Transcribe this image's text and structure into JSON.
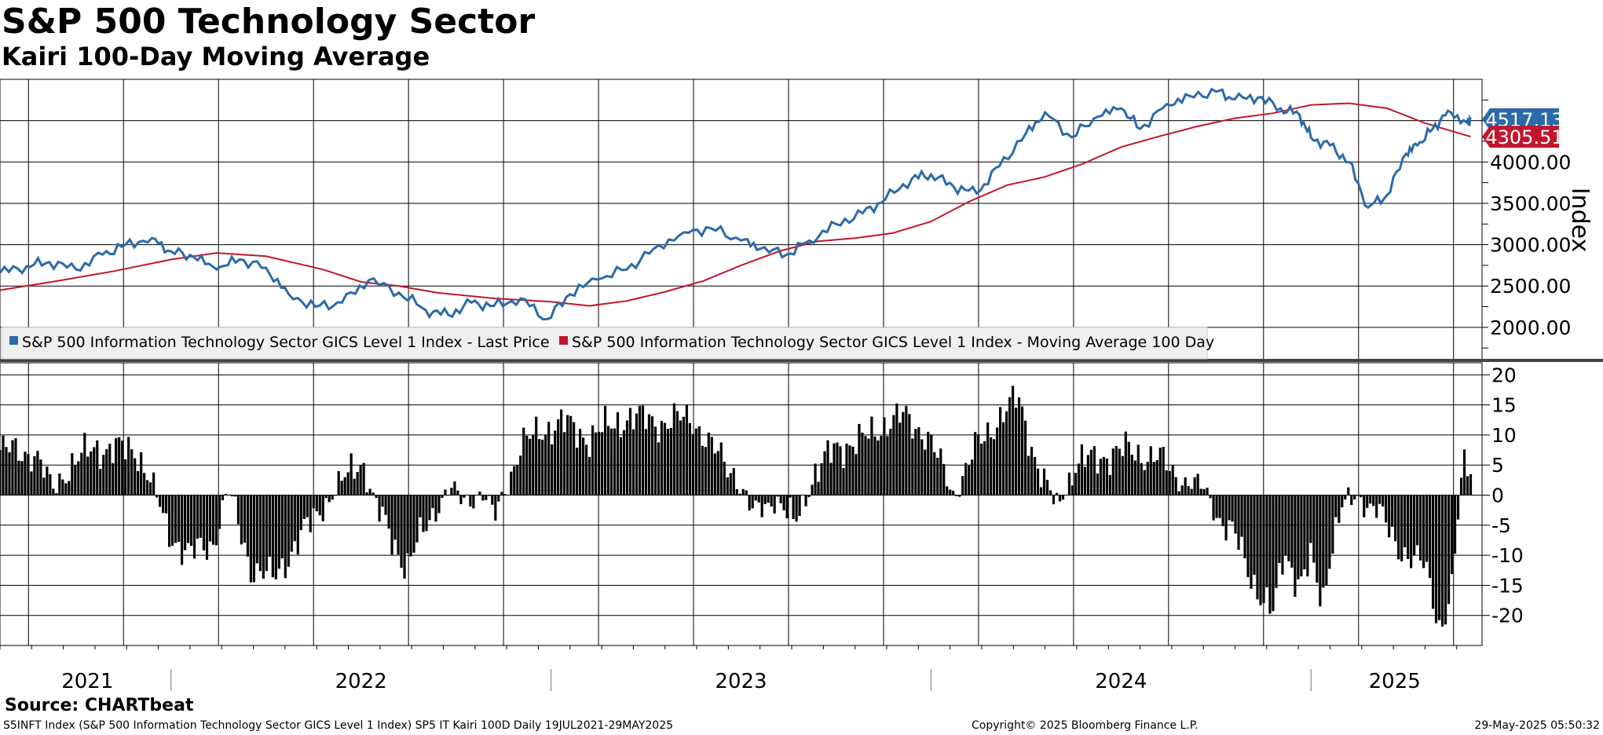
{
  "header": {
    "title": "S&P 500 Technology Sector",
    "subtitle": "Kairi 100-Day Moving Average"
  },
  "footer": {
    "source": "Source: CHARTbeat",
    "left": "S5INFT Index (S&P 500 Information Technology Sector GICS Level 1 Index) SP5 IT Kairi 100D  Daily 19JUL2021-29MAY2025",
    "center": "Copyright© 2025 Bloomberg Finance L.P.",
    "right": "29-May-2025 05:50:32"
  },
  "colors": {
    "price": "#2c6aa8",
    "ma": "#c0172d",
    "kairi": "#000000",
    "grid": "#000000"
  },
  "chart_data": [
    {
      "type": "line",
      "title": "S&P 500 Technology Sector",
      "ylabel": "Index",
      "ylim": [
        1600,
        5000
      ],
      "x_range": [
        2021.55,
        2025.45
      ],
      "yticks": [
        "2000.00",
        "2500.00",
        "3000.00",
        "3500.00",
        "4000.00"
      ],
      "xtick_labels": [
        "2021",
        "2022",
        "2023",
        "2024",
        "2025"
      ],
      "legend": [
        "S&P 500 Information Technology Sector GICS Level 1 Index  - Last Price",
        "S&P 500 Information Technology Sector GICS Level 1 Index  - Moving Average 100 Day"
      ],
      "last_values": {
        "price": "4517.13",
        "ma": "4305.51"
      },
      "series": [
        {
          "name": "Last Price",
          "x": [
            2021.55,
            2021.62,
            2021.68,
            2021.75,
            2021.82,
            2021.88,
            2021.95,
            2022.0,
            2022.06,
            2022.12,
            2022.18,
            2022.25,
            2022.31,
            2022.38,
            2022.45,
            2022.52,
            2022.6,
            2022.67,
            2022.73,
            2022.79,
            2022.85,
            2022.92,
            2022.99,
            2023.05,
            2023.12,
            2023.2,
            2023.27,
            2023.35,
            2023.42,
            2023.5,
            2023.55,
            2023.62,
            2023.68,
            2023.75,
            2023.82,
            2023.88,
            2023.95,
            2024.0,
            2024.06,
            2024.12,
            2024.18,
            2024.25,
            2024.3,
            2024.37,
            2024.44,
            2024.5,
            2024.55,
            2024.62,
            2024.68,
            2024.75,
            2024.8,
            2024.86,
            2024.92,
            2024.97,
            2025.0,
            2025.05,
            2025.1,
            2025.15,
            2025.2,
            2025.25,
            2025.28,
            2025.32,
            2025.36,
            2025.41,
            2025.42
          ],
          "values": [
            2660,
            2740,
            2790,
            2700,
            2880,
            3000,
            3080,
            2920,
            2850,
            2700,
            2820,
            2720,
            2400,
            2250,
            2300,
            2570,
            2420,
            2210,
            2150,
            2300,
            2260,
            2350,
            2100,
            2400,
            2580,
            2700,
            2950,
            3150,
            3200,
            3050,
            2950,
            2880,
            3050,
            3250,
            3380,
            3550,
            3800,
            3850,
            3700,
            3620,
            3950,
            4350,
            4600,
            4300,
            4550,
            4650,
            4400,
            4700,
            4800,
            4850,
            4760,
            4780,
            4650,
            4570,
            4290,
            4200,
            4000,
            3450,
            3600,
            4100,
            4200,
            4400,
            4620,
            4480,
            4517.13
          ]
        },
        {
          "name": "Moving Average 100 Day",
          "x": [
            2021.55,
            2021.7,
            2021.85,
            2022.0,
            2022.12,
            2022.25,
            2022.4,
            2022.5,
            2022.6,
            2022.7,
            2022.85,
            2023.0,
            2023.1,
            2023.2,
            2023.3,
            2023.4,
            2023.5,
            2023.6,
            2023.7,
            2023.8,
            2023.9,
            2024.0,
            2024.1,
            2024.2,
            2024.3,
            2024.4,
            2024.5,
            2024.6,
            2024.7,
            2024.8,
            2024.9,
            2025.0,
            2025.1,
            2025.2,
            2025.3,
            2025.42
          ],
          "values": [
            2450,
            2560,
            2680,
            2820,
            2900,
            2860,
            2700,
            2550,
            2500,
            2420,
            2350,
            2310,
            2260,
            2320,
            2430,
            2560,
            2750,
            2920,
            3040,
            3080,
            3140,
            3280,
            3520,
            3720,
            3820,
            3980,
            4180,
            4310,
            4430,
            4530,
            4590,
            4690,
            4710,
            4650,
            4470,
            4305.51
          ]
        }
      ]
    },
    {
      "type": "bar",
      "title": "SP5 IT Kairi 100D",
      "ylim": [
        -25,
        22
      ],
      "x_range": [
        2021.55,
        2025.45
      ],
      "yticks": [
        20,
        15,
        10,
        5,
        0,
        -5,
        -10,
        -15,
        -20
      ],
      "kairi_anchors": {
        "x": [
          2021.55,
          2021.64,
          2021.69,
          2021.72,
          2021.8,
          2021.87,
          2021.91,
          2021.95,
          2021.99,
          2022.05,
          2022.11,
          2022.15,
          2022.21,
          2022.27,
          2022.33,
          2022.41,
          2022.5,
          2022.54,
          2022.62,
          2022.68,
          2022.73,
          2022.77,
          2022.82,
          2022.85,
          2022.92,
          2022.98,
          2023.03,
          2023.1,
          2023.2,
          2023.3,
          2023.37,
          2023.42,
          2023.48,
          2023.53,
          2023.59,
          2023.64,
          2023.69,
          2023.75,
          2023.82,
          2023.88,
          2023.93,
          2023.99,
          2024.06,
          2024.12,
          2024.18,
          2024.23,
          2024.28,
          2024.33,
          2024.38,
          2024.45,
          2024.52,
          2024.6,
          2024.66,
          2024.72,
          2024.76,
          2024.8,
          2024.84,
          2024.87,
          2024.9,
          2024.93,
          2024.97,
          2025.0,
          2025.03,
          2025.05,
          2025.08,
          2025.12,
          2025.17,
          2025.22,
          2025.26,
          2025.3,
          2025.34,
          2025.37,
          2025.4,
          2025.42
        ],
        "values": [
          7.5,
          7.0,
          1.0,
          4.0,
          8.0,
          7.5,
          7.5,
          2.0,
          -6.0,
          -10.0,
          -8.0,
          1.0,
          -12.0,
          -14.0,
          -8.0,
          -1.0,
          6.0,
          -2.0,
          -12.0,
          -4.0,
          1.0,
          -1.0,
          0.5,
          -4.0,
          8.0,
          11.0,
          12.0,
          9.5,
          13.0,
          12.0,
          13.0,
          8.0,
          4.0,
          -3.0,
          -0.5,
          -5.0,
          3.0,
          8.0,
          9.0,
          12.0,
          13.0,
          10.0,
          0.0,
          8.0,
          13.0,
          16.0,
          5.0,
          -2.0,
          5.0,
          6.5,
          7.5,
          6.0,
          2.5,
          1.0,
          -4.0,
          -7.0,
          -13.0,
          -17.0,
          -20.0,
          -9.0,
          -15.0,
          -11.0,
          -18.0,
          -9.5,
          -2.0,
          -0.5,
          -2.0,
          -8.0,
          -10.0,
          -12.0,
          -22.0,
          -16.0,
          5.0,
          4.5
        ]
      }
    }
  ]
}
